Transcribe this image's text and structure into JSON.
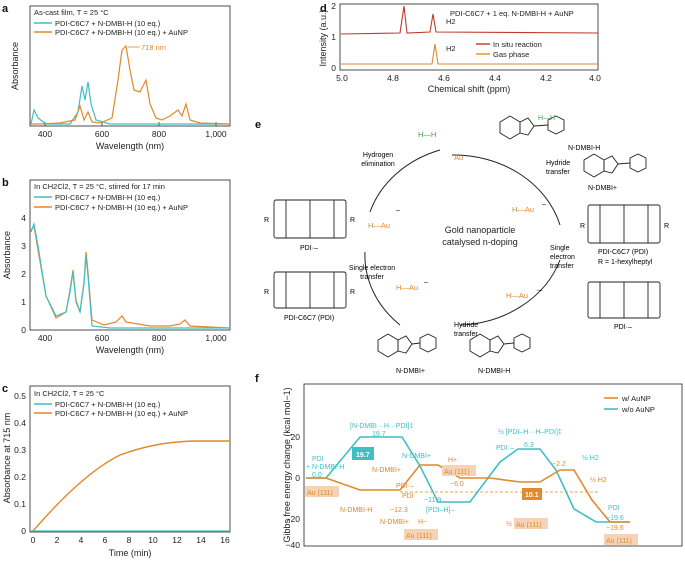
{
  "colors": {
    "teal": "#3ebfc4",
    "orange": "#e08a2a",
    "red": "#c0392b",
    "green": "#3aa84a",
    "dark": "#222222",
    "au_fill": "#f7d3b5"
  },
  "panel_a": {
    "label": "a",
    "legend_title": "As-cast film, T = 25 °C",
    "legend": [
      "PDI-C6C7 + N-DMBI-H (10 eq.)",
      "PDI-C6C7 + N-DMBI-H (10 eq.) + AuNP"
    ],
    "ylabel": "Absorbance",
    "xlabel": "Wavelength (nm)",
    "xticks": [
      "400",
      "600",
      "800",
      "1,000"
    ],
    "annotation": "718 nm"
  },
  "panel_b": {
    "label": "b",
    "legend_title": "In CH2Cl2, T = 25 °C, stirred for 17 min",
    "legend": [
      "PDI-C6C7 + N-DMBI-H (10 eq.)",
      "PDI-C6C7 + N-DMBI-H (10 eq.) + AuNP"
    ],
    "ylabel": "Absorbance",
    "xlabel": "Wavelength (nm)",
    "yticks": [
      "0",
      "1",
      "2",
      "3",
      "4"
    ],
    "xticks": [
      "400",
      "600",
      "800",
      "1,000"
    ]
  },
  "panel_c": {
    "label": "c",
    "legend_title": "In CH2Cl2, T = 25 °C",
    "legend": [
      "PDI-C6C7 + N-DMBI-H (10 eq.)",
      "PDI-C6C7 + N-DMBI-H (10 eq.) + AuNP"
    ],
    "ylabel": "Absorbance at 715 nm",
    "xlabel": "Time (min)",
    "yticks": [
      "0",
      "0.1",
      "0.2",
      "0.3",
      "0.4",
      "0.5"
    ],
    "xticks": [
      "0",
      "2",
      "4",
      "6",
      "8",
      "10",
      "12",
      "14",
      "16"
    ]
  },
  "panel_d": {
    "label": "d",
    "ylabel": "Intensity (a.u.)",
    "xlabel": "Chemical shift (ppm)",
    "title": "PDI-C6C7 + 1 eq. N-DMBI-H + AuNP",
    "yticks": [
      "0",
      "1",
      "2"
    ],
    "xticks": [
      "5.0",
      "4.8",
      "4.6",
      "4.4",
      "4.2",
      "4.0"
    ],
    "legend": [
      "In situ reaction",
      "Gas phase"
    ],
    "h2_label": "H2"
  },
  "panel_e": {
    "label": "e",
    "center": [
      "Gold nanoparticle",
      "catalysed n-doping"
    ],
    "steps": {
      "hydrogen_elimination": [
        "Hydrogen",
        "elimination"
      ],
      "hydride_transfer_top": [
        "Hydride",
        "transfer"
      ],
      "set_right": [
        "Single",
        "electron",
        "transfer"
      ],
      "hydride_transfer_bottom": [
        "Hydride",
        "transfer"
      ],
      "set_left": [
        "Single electron",
        "transfer"
      ]
    },
    "species": {
      "h2": "H—H",
      "au": "Au",
      "au_h_top": "H—Au",
      "au_h_left": "H—Au",
      "au_h_bottom": "H—Au",
      "charge": "–",
      "radical_charge": "·–",
      "ndmbi_h": "N-DMBI-H",
      "ndmbi_plus": "N-DMBI+",
      "pdi": "PDI-C6C7 (PDI)",
      "pdi_anion": "PDI·–",
      "r_def": "R = 1-hexylheptyl",
      "r": "R"
    }
  },
  "panel_f": {
    "label": "f",
    "ylabel": "Gibbs free energy change (kcal mol−1)",
    "yticks": [
      "20",
      "0",
      "−20",
      "−40"
    ],
    "legend": [
      "w/ AuNP",
      "w/o AuNP"
    ],
    "teal_labels": {
      "ts1": "[N-DMBI···H···PDI]‡",
      "ts1_val": "19.7",
      "start": "PDI",
      "start2": "+ N-DMBI-H",
      "start_val": "0.0",
      "ndmbi_plus": "N-DMBI+",
      "pdi_dot": "PDI·–",
      "pdi_h": "[PDI–H]–",
      "pdi_h_val": "−11.9",
      "ts2": "½ [PDI–H···H–PDI]‡",
      "ts2_val": "6.3",
      "h2": "½ H2",
      "end": "PDI",
      "end_val": "−19.6",
      "barrier": "19.7"
    },
    "orange_labels": {
      "au111_start": "Au (111)",
      "ndmbi_plus_o": "N-DMBI+",
      "h_plus": "H+",
      "au111_mid": "Au (111)",
      "mid_val": "−6.0",
      "pdi_dot": "PDI·–",
      "pdi": "PDI",
      "ndmbi_h": "N-DMBI-H",
      "low_val": "−12.3",
      "ndmbi_plus2": "N-DMBI+",
      "h_minus": "H−",
      "au111_low": "Au (111)",
      "ts_val": "−2.2",
      "barrier": "10.1",
      "ts_label": "½",
      "ts_au": "Au (111)",
      "h2": "½ H2",
      "end_au": "Au (111)",
      "end_val": "−19.6"
    }
  }
}
